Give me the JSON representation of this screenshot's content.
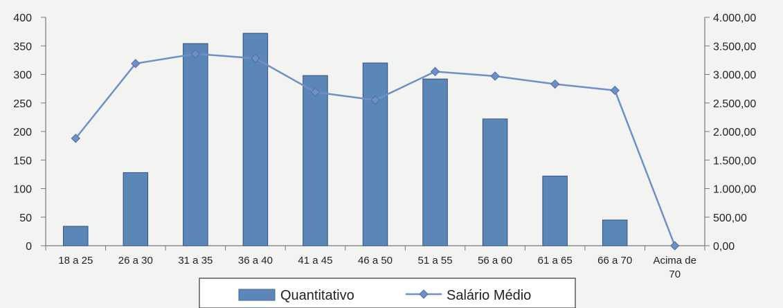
{
  "chart_data": {
    "type": "bar",
    "categories": [
      "18 a 25",
      "26 a 30",
      "31 a 35",
      "36 a 40",
      "41 a 45",
      "46 a 50",
      "51 a 55",
      "56 a 60",
      "61 a 65",
      "66 a 70",
      "Acima de 70"
    ],
    "category_lines": [
      [
        "18 a 25"
      ],
      [
        "26 a 30"
      ],
      [
        "31 a 35"
      ],
      [
        "36 a 40"
      ],
      [
        "41 a 45"
      ],
      [
        "46 a 50"
      ],
      [
        "51 a 55"
      ],
      [
        "56 a 60"
      ],
      [
        "61 a 65"
      ],
      [
        "66 a 70"
      ],
      [
        "Acima de",
        "70"
      ]
    ],
    "series": [
      {
        "name": "Quantitativo",
        "type": "bar",
        "axis": "left",
        "values": [
          34,
          128,
          354,
          372,
          298,
          320,
          292,
          222,
          122,
          45,
          0
        ],
        "color": "#5b86b8"
      },
      {
        "name": "Salário Médio",
        "type": "line",
        "axis": "right",
        "values": [
          1880,
          3190,
          3360,
          3280,
          2690,
          2550,
          3050,
          2970,
          2830,
          2720,
          0
        ],
        "color": "#6f8fc8"
      }
    ],
    "left_axis": {
      "ylim": [
        0,
        400
      ],
      "ticks": [
        0,
        50,
        100,
        150,
        200,
        250,
        300,
        350,
        400
      ],
      "tick_labels": [
        "0",
        "50",
        "100",
        "150",
        "200",
        "250",
        "300",
        "350",
        "400"
      ]
    },
    "right_axis": {
      "ylim": [
        0,
        4000
      ],
      "ticks": [
        0,
        500,
        1000,
        1500,
        2000,
        2500,
        3000,
        3500,
        4000
      ],
      "tick_labels": [
        "0,00",
        "500,00",
        "1.000,00",
        "1.500,00",
        "2.000,00",
        "2.500,00",
        "3.000,00",
        "3.500,00",
        "4.000,00"
      ]
    },
    "legend": {
      "placement": "bottom-center",
      "entries": [
        "Quantitativo",
        "Salário Médio"
      ]
    },
    "grid": false
  }
}
